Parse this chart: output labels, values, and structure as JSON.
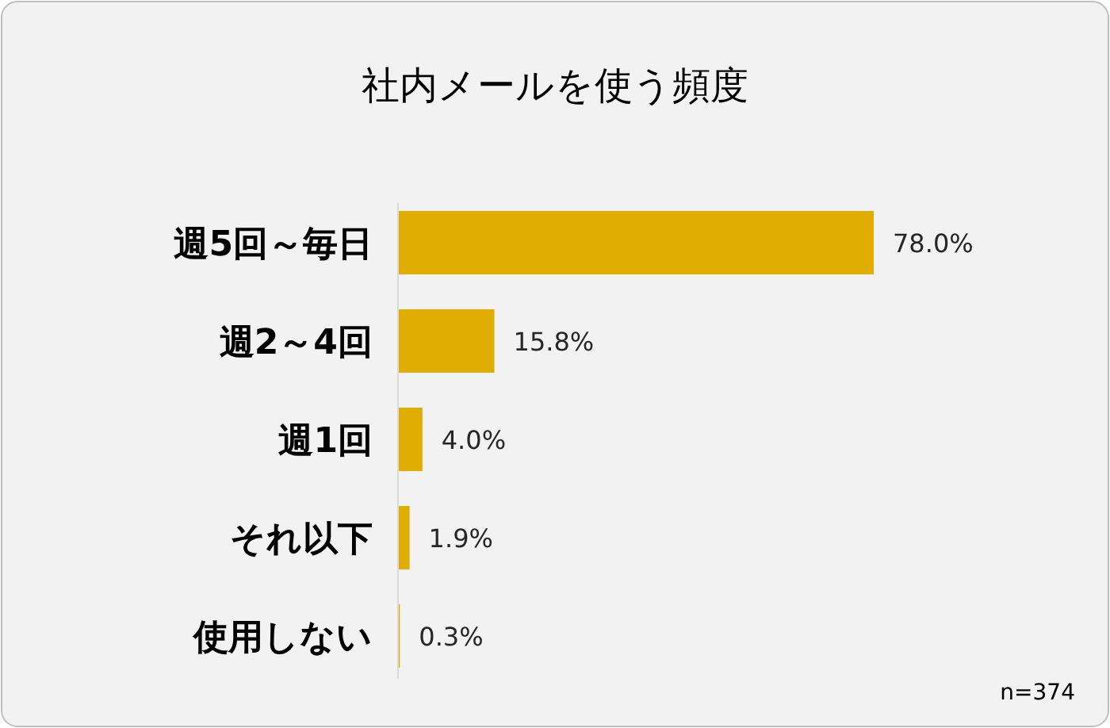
{
  "chart_data": {
    "type": "bar",
    "orientation": "horizontal",
    "title": "社内メールを使う頻度",
    "categories": [
      "週5回～毎日",
      "週2～4回",
      "週1回",
      "それ以下",
      "使用しない"
    ],
    "values": [
      78.0,
      15.8,
      4.0,
      1.9,
      0.3
    ],
    "value_labels": [
      "78.0%",
      "15.8%",
      "4.0%",
      "1.9%",
      "0.3%"
    ],
    "color": "#e0ae00",
    "annotations": [
      "n=374"
    ]
  }
}
